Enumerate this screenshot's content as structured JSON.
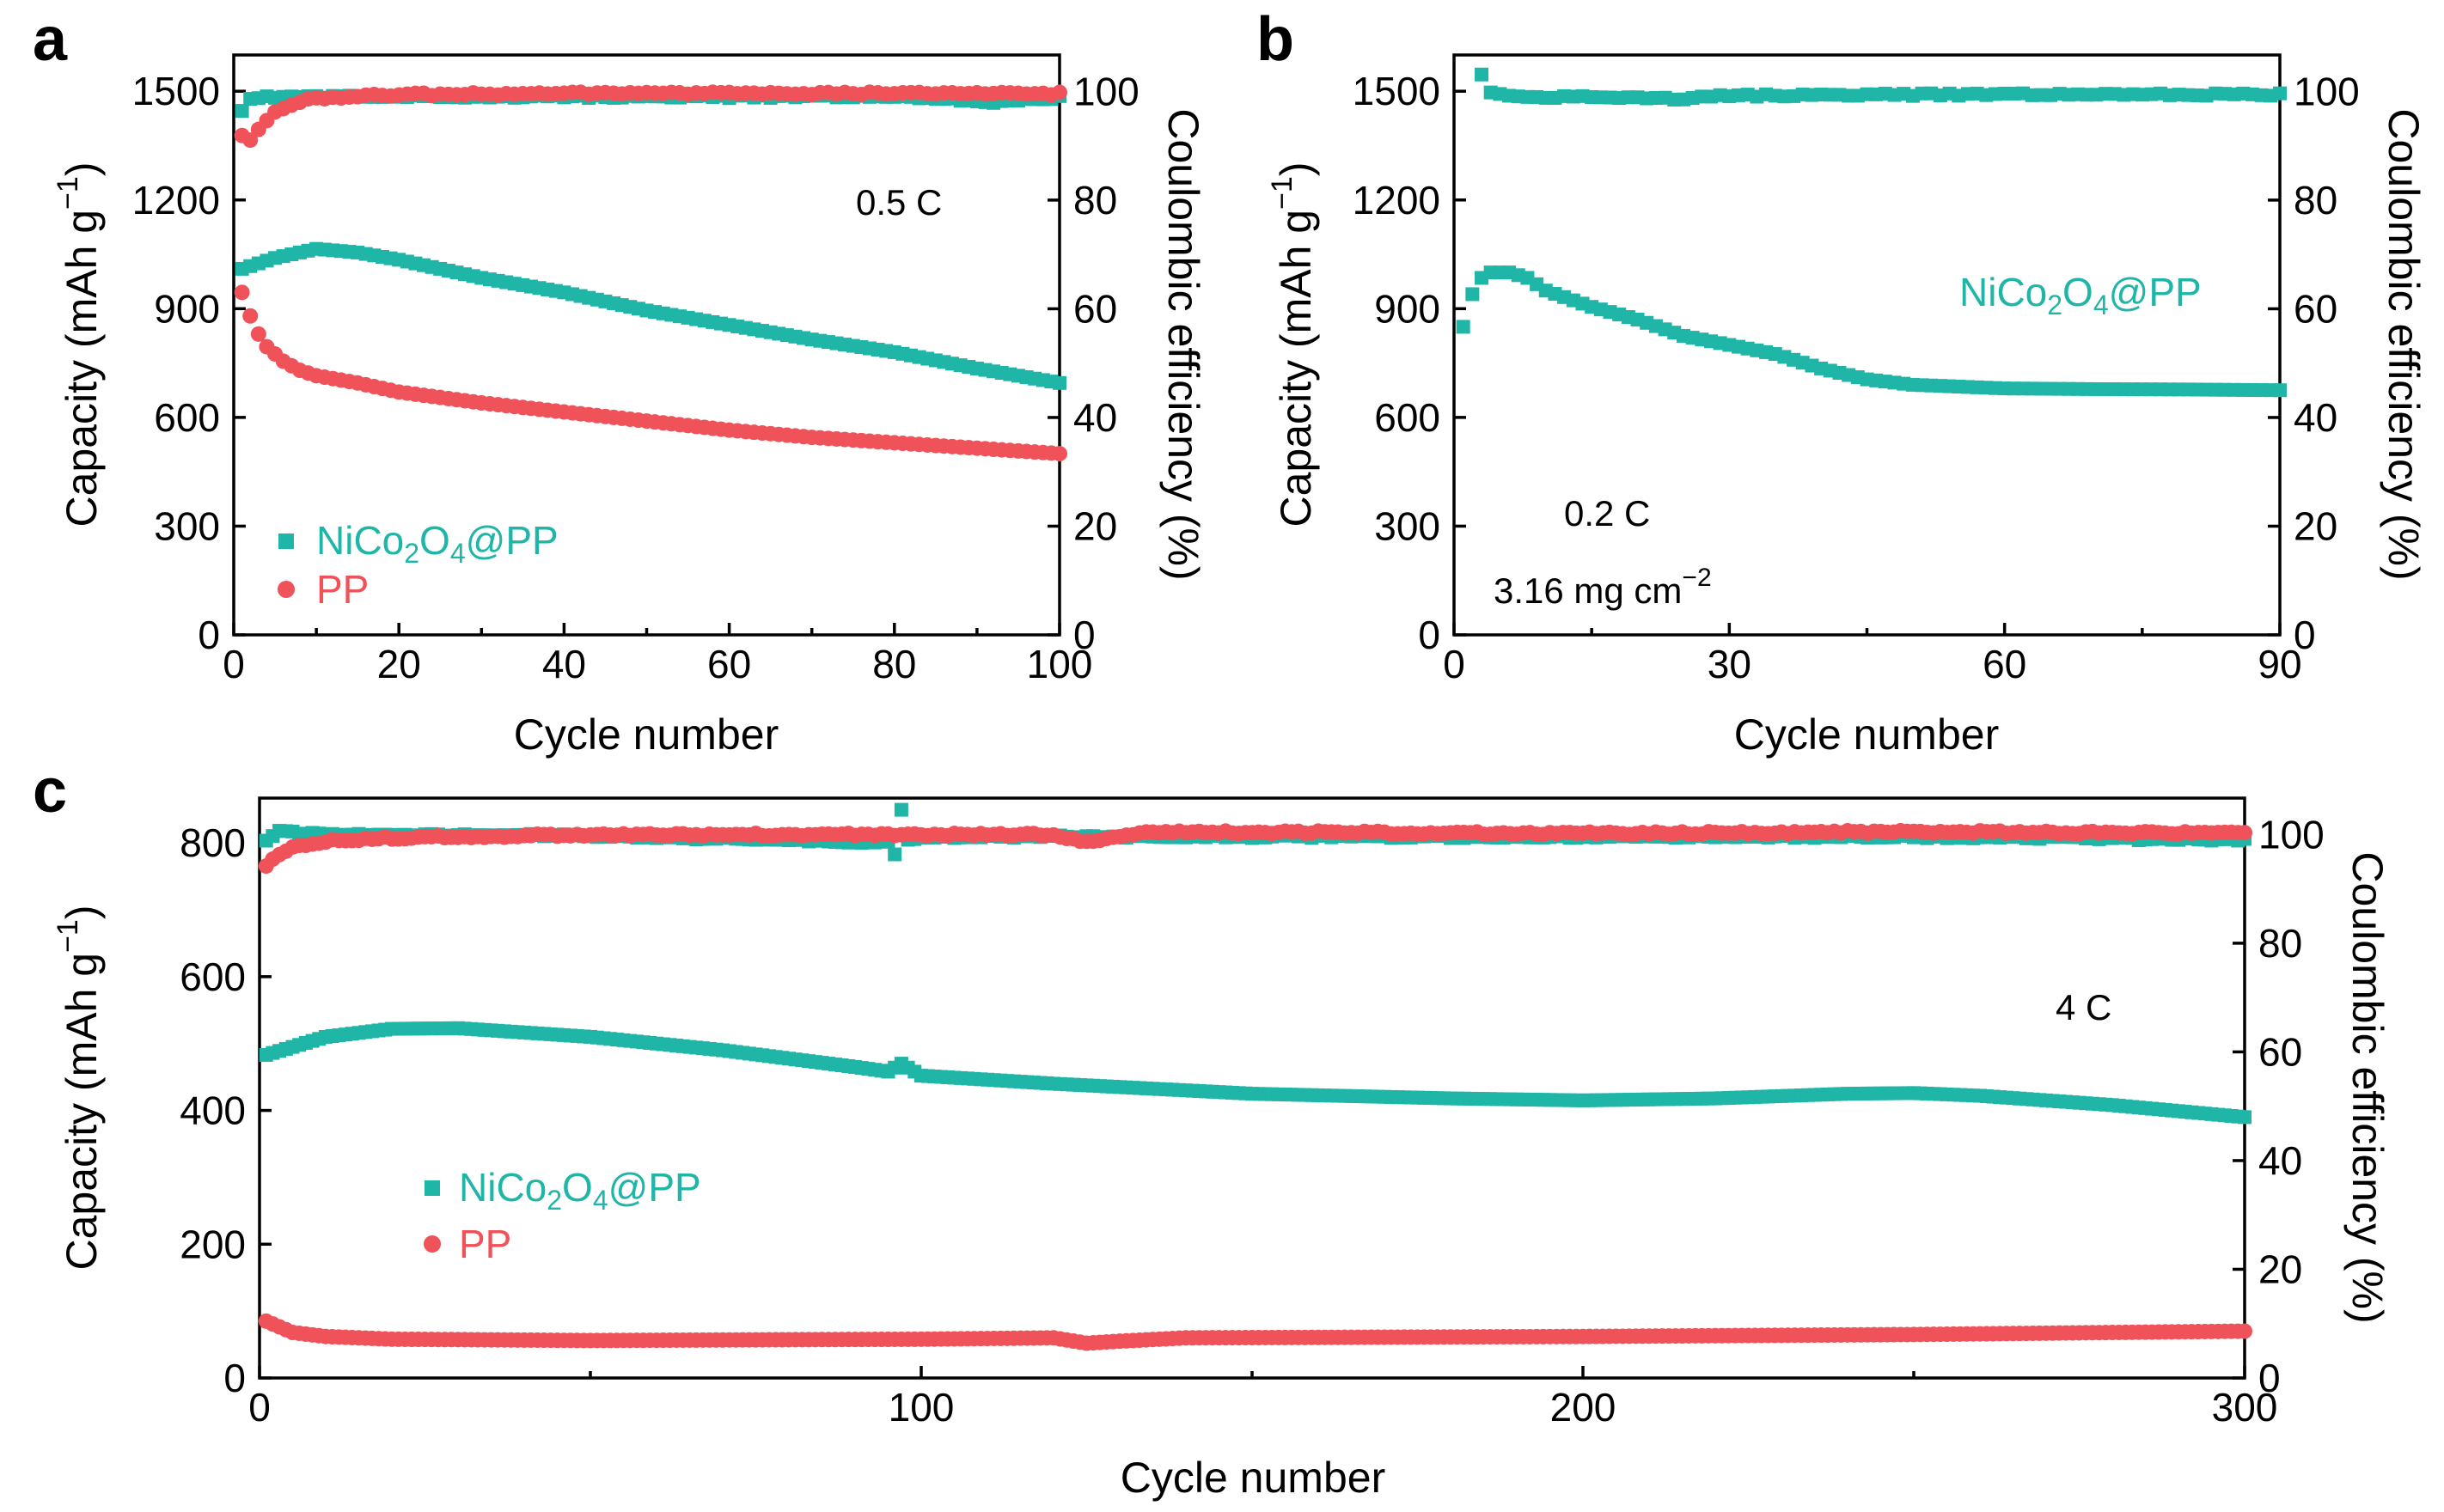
{
  "colors": {
    "nico": "#1fb5a7",
    "pp": "#ef5258",
    "axis": "#000000"
  },
  "chart_data": [
    {
      "panel": "a",
      "type": "scatter",
      "xlabel": "Cycle number",
      "ylabel_left_main": "Capacity (mAh g",
      "ylabel_left_sup": "−1",
      "ylabel_left_end": ")",
      "ylabel_right": "Coulombic efficiency (%)",
      "xlim": [
        0,
        100
      ],
      "ylim_left": [
        0,
        1600
      ],
      "ylim_right": [
        0,
        106.7
      ],
      "xticks": [
        0,
        20,
        40,
        60,
        80,
        100
      ],
      "xtick_labels": [
        "0",
        "20",
        "40",
        "60",
        "80",
        "100"
      ],
      "yticks_left": [
        0,
        300,
        600,
        900,
        1200,
        1500
      ],
      "ytick_labels_left": [
        "0",
        "300",
        "600",
        "900",
        "1200",
        "1500"
      ],
      "yticks_right": [
        0,
        20,
        40,
        60,
        80,
        100
      ],
      "ytick_labels_right": [
        "0",
        "20",
        "40",
        "60",
        "80",
        "100"
      ],
      "annotations": [
        {
          "text": "0.5 C"
        }
      ],
      "legend": [
        {
          "series": "NiCo2O4@PP",
          "pre": "NiCo",
          "sub1": "2",
          "mid": "O",
          "sub2": "4",
          "post": "@PP",
          "marker": "square"
        },
        {
          "series": "PP",
          "pre": "PP",
          "sub1": "",
          "mid": "",
          "sub2": "",
          "post": "",
          "marker": "circle"
        }
      ],
      "series": [
        {
          "name": "NiCo2O4@PP",
          "metric": "capacity",
          "axis": "left",
          "marker": "square",
          "x": [
            1,
            5,
            10,
            15,
            20,
            25,
            30,
            40,
            50,
            60,
            70,
            80,
            90,
            100
          ],
          "y": [
            1010,
            1040,
            1065,
            1055,
            1035,
            1010,
            985,
            945,
            895,
            855,
            815,
            780,
            735,
            695
          ]
        },
        {
          "name": "PP",
          "metric": "capacity",
          "axis": "left",
          "marker": "circle",
          "x": [
            1,
            2,
            3,
            4,
            6,
            8,
            10,
            15,
            20,
            30,
            40,
            50,
            60,
            70,
            80,
            90,
            100
          ],
          "y": [
            945,
            880,
            830,
            795,
            755,
            730,
            715,
            695,
            670,
            640,
            615,
            590,
            565,
            545,
            530,
            515,
            500
          ]
        },
        {
          "name": "NiCo2O4@PP",
          "metric": "coulombic_efficiency",
          "axis": "right",
          "marker": "square",
          "x": [
            1,
            2,
            5,
            10,
            20,
            40,
            60,
            80,
            93,
            100
          ],
          "y": [
            96.5,
            98.8,
            99.0,
            99.0,
            99.0,
            99.0,
            99.0,
            99.0,
            98.0,
            98.9
          ]
        },
        {
          "name": "PP",
          "metric": "coulombic_efficiency",
          "axis": "right",
          "marker": "circle",
          "x": [
            1,
            2,
            3,
            5,
            8,
            10,
            15,
            20,
            30,
            40,
            60,
            80,
            100
          ],
          "y": [
            92,
            91,
            93,
            96,
            98,
            98.8,
            99.2,
            99.4,
            99.5,
            99.6,
            99.6,
            99.6,
            99.6
          ]
        }
      ]
    },
    {
      "panel": "b",
      "type": "scatter",
      "xlabel": "Cycle number",
      "ylabel_left_main": "Capacity (mAh g",
      "ylabel_left_sup": "−1",
      "ylabel_left_end": ")",
      "ylabel_right": "Coulombic efficiency (%)",
      "xlim": [
        0,
        90
      ],
      "ylim_left": [
        0,
        1600
      ],
      "ylim_right": [
        0,
        106.7
      ],
      "xticks": [
        0,
        30,
        60,
        90
      ],
      "xtick_labels": [
        "0",
        "30",
        "60",
        "90"
      ],
      "yticks_left": [
        0,
        300,
        600,
        900,
        1200,
        1500
      ],
      "ytick_labels_left": [
        "0",
        "300",
        "600",
        "900",
        "1200",
        "1500"
      ],
      "yticks_right": [
        0,
        20,
        40,
        60,
        80,
        100
      ],
      "ytick_labels_right": [
        "0",
        "20",
        "40",
        "60",
        "80",
        "100"
      ],
      "annotations": [
        {
          "text": "0.2 C"
        },
        {
          "text": "3.16 mg cm",
          "sup": "−2"
        }
      ],
      "legend": [
        {
          "series": "NiCo2O4@PP",
          "pre": "NiCo",
          "sub1": "2",
          "mid": "O",
          "sub2": "4",
          "post": "@PP",
          "marker": "none"
        }
      ],
      "series": [
        {
          "name": "NiCo2O4@PP",
          "metric": "capacity",
          "axis": "left",
          "marker": "square",
          "x": [
            1,
            2,
            3,
            4,
            6,
            8,
            10,
            15,
            20,
            25,
            30,
            35,
            40,
            45,
            50,
            55,
            60,
            70,
            80,
            90
          ],
          "y": [
            850,
            940,
            985,
            1000,
            1000,
            985,
            950,
            905,
            870,
            825,
            800,
            775,
            735,
            705,
            690,
            685,
            680,
            678,
            677,
            675
          ]
        },
        {
          "name": "NiCo2O4@PP",
          "metric": "coulombic_efficiency",
          "axis": "right",
          "marker": "square",
          "x": [
            3,
            4,
            6,
            10,
            15,
            20,
            25,
            30,
            40,
            50,
            60,
            70,
            80,
            90
          ],
          "y": [
            103,
            99.6,
            99.2,
            98.8,
            99.0,
            98.9,
            98.6,
            99.2,
            99.3,
            99.4,
            99.4,
            99.4,
            99.4,
            99.4
          ]
        }
      ]
    },
    {
      "panel": "c",
      "type": "scatter",
      "xlabel": "Cycle number",
      "ylabel_left_main": "Capacity (mAh g",
      "ylabel_left_sup": "−1",
      "ylabel_left_end": ")",
      "ylabel_right": "Coulombic efficiency (%)",
      "xlim": [
        0,
        300
      ],
      "ylim_left": [
        0,
        867
      ],
      "ylim_right": [
        0,
        106.7
      ],
      "xticks": [
        0,
        100,
        200,
        300
      ],
      "xtick_labels": [
        "0",
        "100",
        "200",
        "300"
      ],
      "yticks_left": [
        0,
        200,
        400,
        600,
        800
      ],
      "ytick_labels_left": [
        "0",
        "200",
        "400",
        "600",
        "800"
      ],
      "yticks_right": [
        0,
        20,
        40,
        60,
        80,
        100
      ],
      "ytick_labels_right": [
        "0",
        "20",
        "40",
        "60",
        "80",
        "100"
      ],
      "annotations": [
        {
          "text": "4 C"
        }
      ],
      "legend": [
        {
          "series": "NiCo2O4@PP",
          "pre": "NiCo",
          "sub1": "2",
          "mid": "O",
          "sub2": "4",
          "post": "@PP",
          "marker": "square"
        },
        {
          "series": "PP",
          "pre": "PP",
          "sub1": "",
          "mid": "",
          "sub2": "",
          "post": "",
          "marker": "circle"
        }
      ],
      "series": [
        {
          "name": "NiCo2O4@PP",
          "metric": "capacity",
          "axis": "left",
          "marker": "square",
          "x": [
            1,
            10,
            20,
            30,
            50,
            70,
            90,
            95,
            97,
            100,
            120,
            150,
            180,
            200,
            220,
            240,
            250,
            260,
            280,
            300
          ],
          "y": [
            483,
            510,
            522,
            523,
            510,
            490,
            465,
            458,
            470,
            452,
            440,
            425,
            418,
            415,
            418,
            425,
            426,
            422,
            408,
            390
          ]
        },
        {
          "name": "PP",
          "metric": "capacity",
          "axis": "left",
          "marker": "circle",
          "x": [
            1,
            5,
            10,
            20,
            50,
            100,
            120,
            125,
            130,
            140,
            200,
            250,
            300
          ],
          "y": [
            85,
            68,
            62,
            58,
            56,
            58,
            60,
            52,
            55,
            60,
            62,
            65,
            70
          ]
        },
        {
          "name": "NiCo2O4@PP",
          "metric": "coulombic_efficiency",
          "axis": "right",
          "marker": "square",
          "x": [
            1,
            3,
            10,
            50,
            95,
            96,
            97,
            98,
            100,
            150,
            200,
            250,
            300
          ],
          "y": [
            99.0,
            100.5,
            100.0,
            99.8,
            98.5,
            96.5,
            104.5,
            99.0,
            99.6,
            99.6,
            99.6,
            99.6,
            99.0
          ]
        },
        {
          "name": "PP",
          "metric": "coulombic_efficiency",
          "axis": "right",
          "marker": "circle",
          "x": [
            1,
            3,
            5,
            10,
            20,
            40,
            80,
            120,
            125,
            130,
            135,
            200,
            250,
            300
          ],
          "y": [
            94,
            96.5,
            97.5,
            98.8,
            99.4,
            99.8,
            100,
            100,
            98.5,
            99.5,
            100.5,
            100.2,
            100.5,
            100.3
          ]
        }
      ]
    }
  ]
}
